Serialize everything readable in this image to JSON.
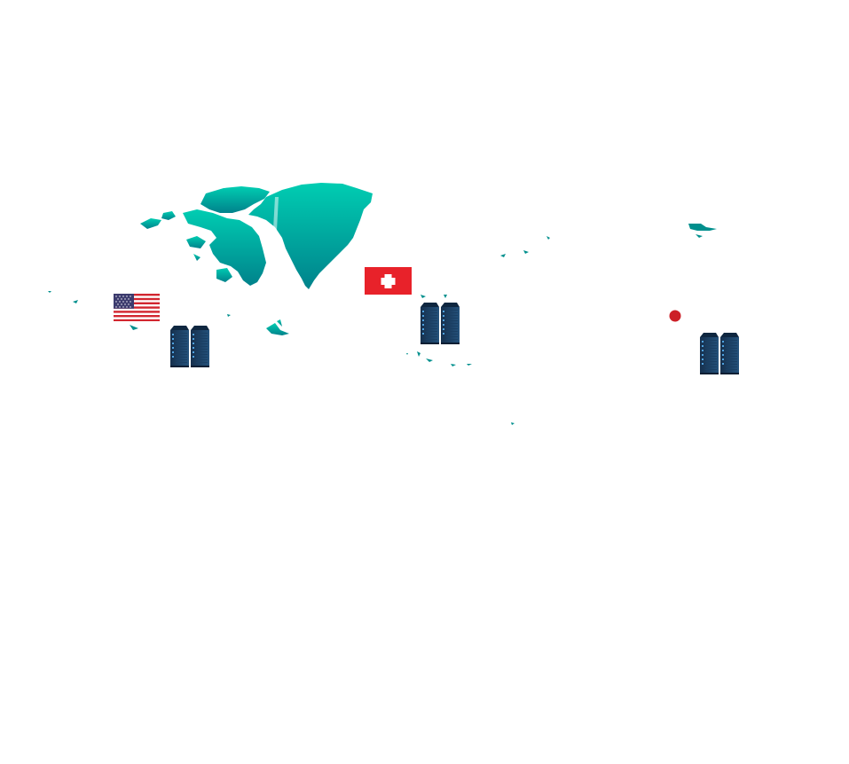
{
  "map": {
    "land_color_top": "#00c9b0",
    "land_color_bottom": "#00838c",
    "regions": [
      "greenland",
      "canadian-arctic-archipelago",
      "svalbard",
      "franz-josef-land",
      "iceland",
      "alaska-islands",
      "faroe-islands"
    ]
  },
  "markers": [
    {
      "id": "us",
      "flag": "united-states-flag",
      "server_icon": "server-rack-icon"
    },
    {
      "id": "ch",
      "flag": "switzerland-flag",
      "server_icon": "server-rack-icon"
    },
    {
      "id": "jp",
      "flag": "location-dot",
      "server_icon": "server-rack-icon"
    }
  ],
  "colors": {
    "flag_red": "#e8222a",
    "us_blue": "#3c3b6e",
    "us_red": "#d22630",
    "server_dark": "#1d3a5b",
    "server_light": "#27608f",
    "dot_red": "#cc1f27"
  }
}
